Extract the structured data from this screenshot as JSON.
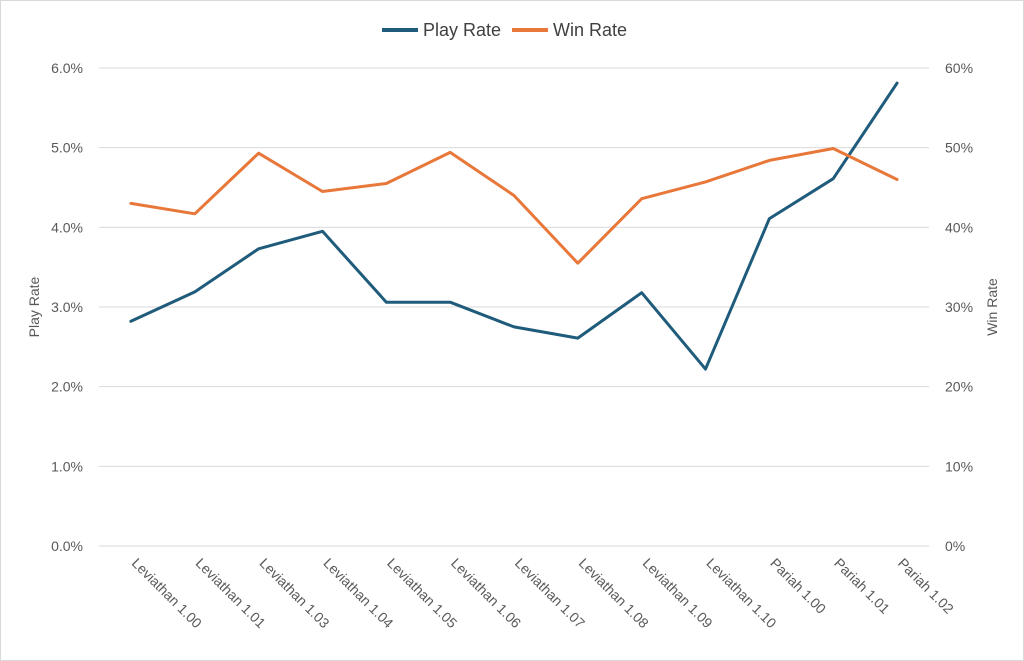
{
  "chart_data": {
    "type": "line",
    "categories": [
      "Leviathan 1.00",
      "Leviathan 1.01",
      "Leviathan 1.03",
      "Leviathan 1.04",
      "Leviathan 1.05",
      "Leviathan 1.06",
      "Leviathan 1.07",
      "Leviathan 1.08",
      "Leviathan 1.09",
      "Leviathan 1.10",
      "Pariah 1.00",
      "Pariah 1.01",
      "Pariah 1.02"
    ],
    "series": [
      {
        "name": "Play Rate",
        "axis": "left",
        "color": "#1f5b7a",
        "values": [
          2.82,
          3.19,
          3.73,
          3.95,
          3.06,
          3.06,
          2.75,
          2.61,
          3.18,
          2.22,
          4.11,
          4.61,
          5.81
        ]
      },
      {
        "name": "Win Rate",
        "axis": "right",
        "color": "#e8773a",
        "values": [
          43.0,
          41.7,
          49.3,
          44.5,
          45.5,
          49.4,
          44.0,
          35.5,
          43.6,
          45.7,
          48.4,
          49.9,
          46.0
        ]
      }
    ],
    "y_left": {
      "label": "Play Rate",
      "min": 0,
      "max": 6,
      "ticks": [
        "0.0%",
        "1.0%",
        "2.0%",
        "3.0%",
        "4.0%",
        "5.0%",
        "6.0%"
      ]
    },
    "y_right": {
      "label": "Win Rate",
      "min": 0,
      "max": 60,
      "ticks": [
        "0%",
        "10%",
        "20%",
        "30%",
        "40%",
        "50%",
        "60%"
      ]
    },
    "grid": true,
    "legend_position": "top-center"
  }
}
